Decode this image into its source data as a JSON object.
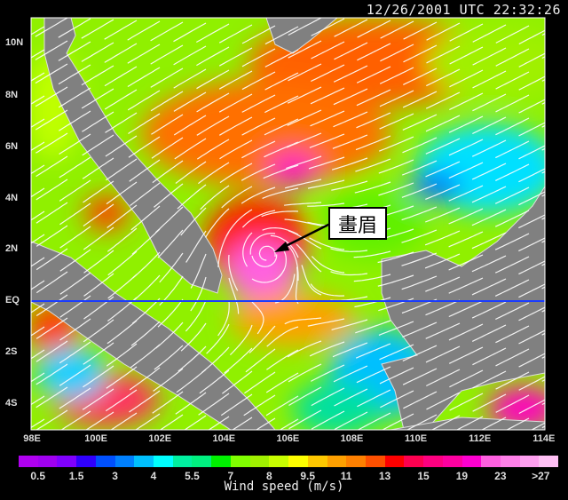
{
  "timestamp": "12/26/2001 UTC 22:32:26",
  "storm_label": "畫眉",
  "lat_labels": [
    "10N",
    "8N",
    "6N",
    "4N",
    "2N",
    "EQ",
    "2S",
    "4S"
  ],
  "lon_labels": [
    "98E",
    "100E",
    "102E",
    "104E",
    "106E",
    "108E",
    "110E",
    "112E",
    "114E"
  ],
  "colorbar": {
    "title": "Wind speed (m/s)",
    "tick_labels": [
      "0.5",
      "1.5",
      "3",
      "4",
      "5.5",
      "7",
      "8",
      "9.5",
      "11",
      "13",
      "15",
      "19",
      "23",
      ">27"
    ],
    "colors": [
      "#b000f0",
      "#a000f0",
      "#8000ff",
      "#3000ff",
      "#0050ff",
      "#0080ff",
      "#00c0ff",
      "#00ffff",
      "#00f0a0",
      "#00f080",
      "#00f000",
      "#80ff00",
      "#a0f000",
      "#c8ff00",
      "#ffff00",
      "#ffc800",
      "#ffa000",
      "#ff8000",
      "#ff5000",
      "#ff0000",
      "#ff0050",
      "#ff0080",
      "#ff00a0",
      "#ff00d0",
      "#ff60e0",
      "#ff80e8",
      "#ffa0f0",
      "#ffc0f4"
    ]
  },
  "colors": {
    "land": "#808080",
    "equator": "#1a3cff",
    "streamline": "#ffffff"
  }
}
